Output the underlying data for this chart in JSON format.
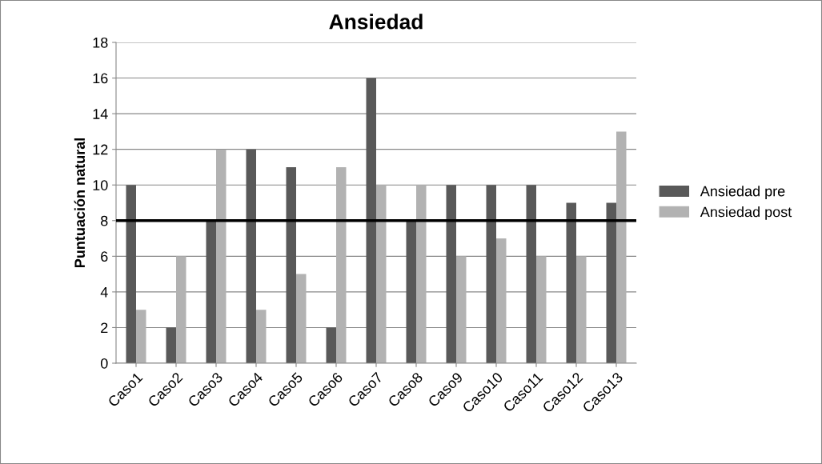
{
  "chart_data": {
    "type": "bar",
    "title": "Ansiedad",
    "ylabel": "Puntuación natural",
    "categories": [
      "Caso1",
      "Caso2",
      "Caso3",
      "Caso4",
      "Caso5",
      "Caso6",
      "Caso7",
      "Caso8",
      "Caso9",
      "Caso10",
      "Caso11",
      "Caso12",
      "Caso13"
    ],
    "series": [
      {
        "name": "Ansiedad pre",
        "color": "#595959",
        "values": [
          10,
          2,
          8,
          12,
          11,
          2,
          16,
          8,
          10,
          10,
          10,
          9,
          9
        ]
      },
      {
        "name": "Ansiedad post",
        "color": "#b2b2b2",
        "values": [
          3,
          6,
          12,
          3,
          5,
          11,
          10,
          10,
          6,
          7,
          6,
          6,
          13
        ]
      }
    ],
    "ylim": [
      0,
      18
    ],
    "yticks": [
      0,
      2,
      4,
      6,
      8,
      10,
      12,
      14,
      16,
      18
    ],
    "grid": "y",
    "legend": "right",
    "ref_lines": [
      {
        "axis": "y",
        "value": 8,
        "color": "#000000"
      }
    ]
  }
}
